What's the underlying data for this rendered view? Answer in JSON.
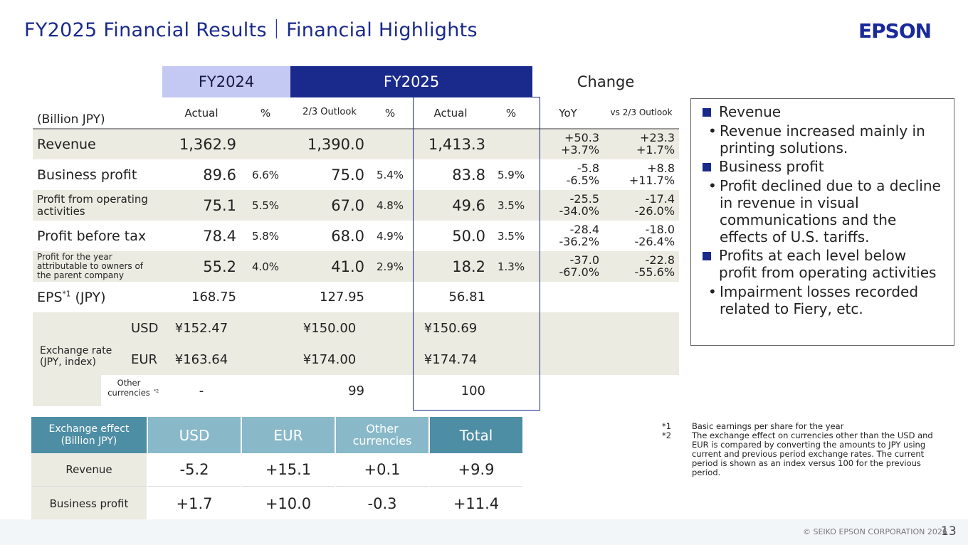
{
  "title": "FY2025 Financial Results｜Financial Highlights",
  "logo": "EPSON",
  "table": {
    "headers": {
      "fy2024": "FY2024",
      "fy2025": "FY2025",
      "change": "Change",
      "unit": "(Billion JPY)",
      "actual": "Actual",
      "pct": "%",
      "outlook": "2/3 Outlook",
      "yoy": "YoY",
      "vs_outlook": "vs 2/3 Outlook"
    },
    "rows": [
      {
        "label": "Revenue",
        "fy24": "1,362.9",
        "fy24p": "",
        "out": "1,390.0",
        "outp": "",
        "act": "1,413.3",
        "actp": "",
        "yoy1": "+50.3",
        "yoy2": "+3.7%",
        "vs1": "+23.3",
        "vs2": "+1.7%"
      },
      {
        "label": "Business profit",
        "fy24": "89.6",
        "fy24p": "6.6%",
        "out": "75.0",
        "outp": "5.4%",
        "act": "83.8",
        "actp": "5.9%",
        "yoy1": "-5.8",
        "yoy2": "-6.5%",
        "vs1": "+8.8",
        "vs2": "+11.7%"
      },
      {
        "label": "Profit from operating activities",
        "fy24": "75.1",
        "fy24p": "5.5%",
        "out": "67.0",
        "outp": "4.8%",
        "act": "49.6",
        "actp": "3.5%",
        "yoy1": "-25.5",
        "yoy2": "-34.0%",
        "vs1": "-17.4",
        "vs2": "-26.0%"
      },
      {
        "label": "Profit before tax",
        "fy24": "78.4",
        "fy24p": "5.8%",
        "out": "68.0",
        "outp": "4.9%",
        "act": "50.0",
        "actp": "3.5%",
        "yoy1": "-28.4",
        "yoy2": "-36.2%",
        "vs1": "-18.0",
        "vs2": "-26.4%"
      },
      {
        "label": "Profit for the year attributable to owners of the parent company",
        "fy24": "55.2",
        "fy24p": "4.0%",
        "out": "41.0",
        "outp": "2.9%",
        "act": "18.2",
        "actp": "1.3%",
        "yoy1": "-37.0",
        "yoy2": "-67.0%",
        "vs1": "-22.8",
        "vs2": "-55.6%"
      }
    ],
    "eps": {
      "label_main": "EPS",
      "label_sup": "*1",
      "label_unit": " (JPY)",
      "fy24": "168.75",
      "out": "127.95",
      "act": "56.81"
    },
    "fx": {
      "label": "Exchange rate (JPY, index)",
      "usd": {
        "label": "USD",
        "fy24": "¥152.47",
        "out": "¥150.00",
        "act": "¥150.69"
      },
      "eur": {
        "label": "EUR",
        "fy24": "¥163.64",
        "out": "¥174.00",
        "act": "¥174.74"
      },
      "other": {
        "label": "Other currencies",
        "sup": "*2",
        "fy24": "-",
        "out": "99",
        "act": "100"
      }
    }
  },
  "effect": {
    "header": {
      "first": "Exchange effect (Billion JPY)",
      "usd": "USD",
      "eur": "EUR",
      "other": "Other currencies",
      "total": "Total"
    },
    "rows": [
      {
        "label": "Revenue",
        "usd": "-5.2",
        "eur": "+15.1",
        "other": "+0.1",
        "total": "+9.9"
      },
      {
        "label": "Business profit",
        "usd": "+1.7",
        "eur": "+10.0",
        "other": "-0.3",
        "total": "+11.4"
      }
    ]
  },
  "summary": [
    {
      "head": "Revenue",
      "bullet": "Revenue increased mainly in printing solutions."
    },
    {
      "head": "Business profit",
      "bullet": "Profit declined due to a decline in revenue in visual communications and the effects of U.S. tariffs."
    },
    {
      "head": "Profits at each level below profit from operating activities",
      "bullet": "Impairment losses recorded related to Fiery, etc."
    }
  ],
  "notes": [
    {
      "key": "*1",
      "text": "Basic earnings per share for the year"
    },
    {
      "key": "*2",
      "text": "The exchange effect on currencies other than the USD and EUR is compared by converting the amounts to JPY using current and previous period exchange rates. The current period is shown as an index versus 100 for the previous period."
    }
  ],
  "footer": {
    "copyright": "© SEIKO EPSON CORPORATION 2026",
    "page": "13"
  },
  "colors": {
    "brand_navy": "#1a2a8c",
    "fy2024_header": "#c4c9f4",
    "effect_header": "#89b9c9",
    "effect_dark": "#4d8ea5",
    "shade": "#ecebe2"
  }
}
